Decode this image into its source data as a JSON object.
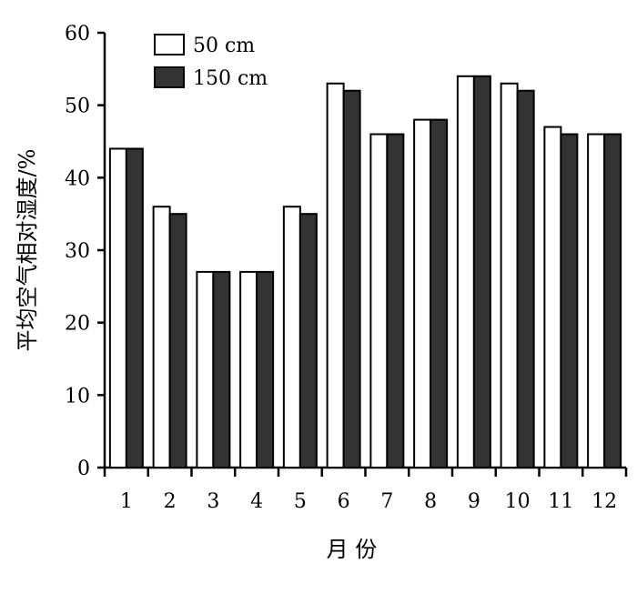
{
  "chart_data": {
    "type": "bar",
    "xlabel": "月 份",
    "ylabel": "平均空气相对湿度/%",
    "categories": [
      "1",
      "2",
      "3",
      "4",
      "5",
      "6",
      "7",
      "8",
      "9",
      "10",
      "11",
      "12"
    ],
    "series": [
      {
        "name": "50 cm",
        "color": "#ffffff",
        "values": [
          44,
          36,
          27,
          27,
          36,
          53,
          46,
          48,
          54,
          53,
          47,
          46
        ]
      },
      {
        "name": "150 cm",
        "color": "#333333",
        "values": [
          44,
          35,
          27,
          27,
          35,
          52,
          46,
          48,
          54,
          52,
          46,
          46
        ]
      }
    ],
    "ylim": [
      0,
      60
    ],
    "yticks": [
      0,
      10,
      20,
      30,
      40,
      50,
      60
    ],
    "grid": false,
    "legend_position": "top-left"
  }
}
